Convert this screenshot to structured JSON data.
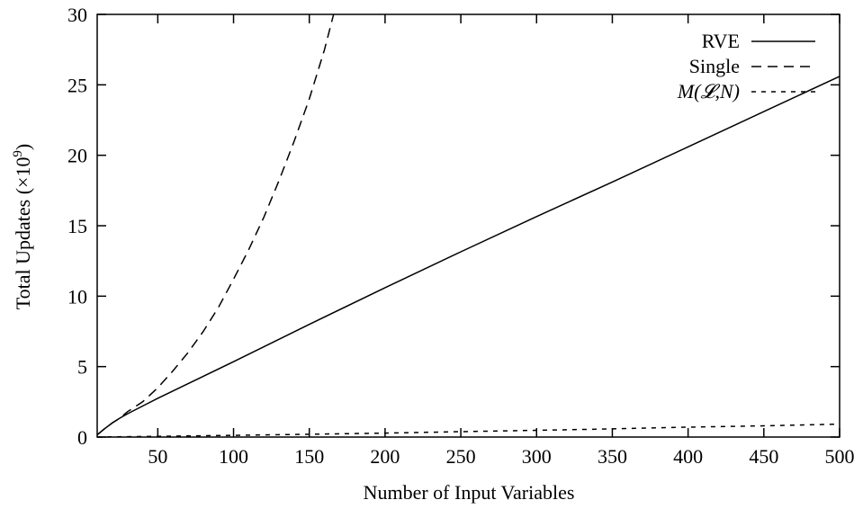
{
  "chart_data": {
    "type": "line",
    "title": "",
    "xlabel": "Number of Input Variables",
    "ylabel_main": "Total Updates (×10",
    "ylabel_exp": "9",
    "ylabel_close": ")",
    "xlim": [
      10,
      500
    ],
    "ylim": [
      0,
      30
    ],
    "xticks": [
      50,
      100,
      150,
      200,
      250,
      300,
      350,
      400,
      450,
      500
    ],
    "yticks": [
      0,
      5,
      10,
      15,
      20,
      25,
      30
    ],
    "grid": false,
    "legend_position": "top-right",
    "series": [
      {
        "name": "RVE",
        "dash": "solid",
        "x": [
          10,
          15,
          20,
          25,
          30,
          40,
          50,
          75,
          100,
          150,
          200,
          250,
          300,
          350,
          400,
          450,
          500
        ],
        "y": [
          0.15,
          0.6,
          1.0,
          1.35,
          1.65,
          2.2,
          2.75,
          4.05,
          5.35,
          8.0,
          10.6,
          13.15,
          15.65,
          18.1,
          20.6,
          23.1,
          25.6
        ]
      },
      {
        "name": "Single",
        "dash": "long",
        "x": [
          10,
          15,
          20,
          25,
          30,
          40,
          50,
          60,
          70,
          80,
          90,
          100,
          110,
          120,
          130,
          140,
          150,
          160,
          166
        ],
        "y": [
          0.15,
          0.6,
          1.0,
          1.35,
          1.8,
          2.5,
          3.5,
          4.7,
          6.0,
          7.5,
          9.2,
          11.2,
          13.3,
          15.6,
          18.2,
          21.0,
          24.0,
          27.5,
          30.0
        ]
      },
      {
        "name": "M(𝓛,N)",
        "dash": "short",
        "x": [
          10,
          50,
          100,
          150,
          200,
          250,
          300,
          350,
          400,
          450,
          500
        ],
        "y": [
          0.0,
          0.05,
          0.12,
          0.2,
          0.28,
          0.38,
          0.48,
          0.58,
          0.7,
          0.8,
          0.92
        ]
      }
    ]
  }
}
